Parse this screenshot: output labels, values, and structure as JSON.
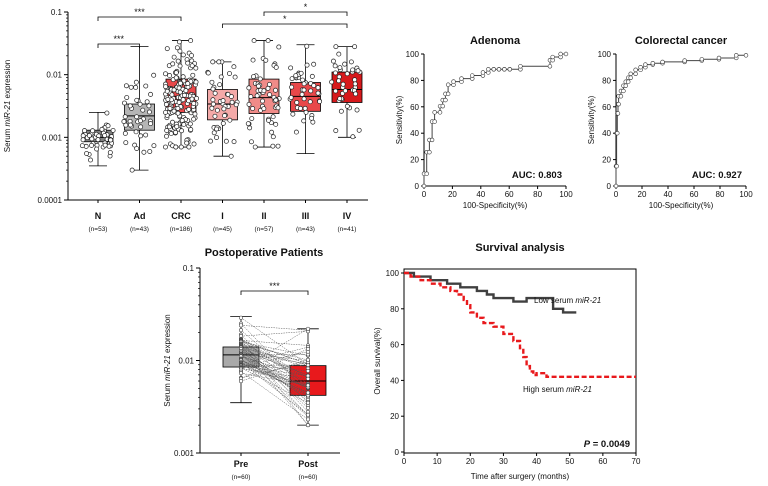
{
  "chart_data": [
    {
      "id": "boxA",
      "type": "box",
      "ylabel_prefix": "Serum ",
      "ylabel_italic": "miR-21",
      "ylabel_suffix": " expression",
      "yscale": "log",
      "ylim": [
        0.0001,
        0.1
      ],
      "yticks": [
        "0.1",
        "0.01",
        "0.001",
        "0.0001"
      ],
      "categories": [
        {
          "label": "N",
          "n_label": "(n=53)",
          "n": 53,
          "color": "#808080",
          "q1": 0.00085,
          "median": 0.001,
          "q3": 0.0013,
          "wlo": 0.00035,
          "whi": 0.0025
        },
        {
          "label": "Ad",
          "n_label": "(n=43)",
          "n": 43,
          "color": "#b5b5b5",
          "q1": 0.0013,
          "median": 0.0022,
          "q3": 0.0034,
          "wlo": 0.0003,
          "whi": 0.028
        },
        {
          "label": "CRC",
          "n_label": "(n=186)",
          "n": 186,
          "color": "#e8484a",
          "q1": 0.0025,
          "median": 0.0045,
          "q3": 0.0085,
          "wlo": 0.0007,
          "whi": 0.035
        },
        {
          "label": "I",
          "n_label": "(n=45)",
          "n": 45,
          "color": "#f4a9a8",
          "q1": 0.0019,
          "median": 0.0034,
          "q3": 0.0058,
          "wlo": 0.0005,
          "whi": 0.016
        },
        {
          "label": "II",
          "n_label": "(n=57)",
          "n": 57,
          "color": "#f08b88",
          "q1": 0.0024,
          "median": 0.0043,
          "q3": 0.0085,
          "wlo": 0.0007,
          "whi": 0.035
        },
        {
          "label": "III",
          "n_label": "(n=43)",
          "n": 43,
          "color": "#e8484a",
          "q1": 0.0026,
          "median": 0.0045,
          "q3": 0.0075,
          "wlo": 0.00055,
          "whi": 0.03
        },
        {
          "label": "IV",
          "n_label": "(n=41)",
          "n": 41,
          "color": "#d7191c",
          "q1": 0.0036,
          "median": 0.0058,
          "q3": 0.011,
          "wlo": 0.001,
          "whi": 0.028
        }
      ],
      "significance": [
        {
          "from": 0,
          "to": 1,
          "label": "***"
        },
        {
          "from": 0,
          "to": 2,
          "label": "***"
        },
        {
          "from": 3,
          "to": 6,
          "label": "*"
        },
        {
          "from": 4,
          "to": 6,
          "label": "*"
        }
      ]
    },
    {
      "id": "rocAdenoma",
      "type": "line",
      "title": "Adenoma",
      "xlabel": "100-Specificity(%)",
      "ylabel": "Sensitivity(%)",
      "xlim": [
        0,
        100
      ],
      "ylim": [
        0,
        100
      ],
      "ticks": [
        "0",
        "20",
        "40",
        "60",
        "80",
        "100"
      ],
      "annotation": "AUC: 0.803",
      "x": [
        0,
        0,
        1.9,
        1.9,
        3.8,
        3.8,
        5.7,
        5.7,
        7.5,
        7.5,
        11.3,
        11.3,
        13.2,
        13.2,
        15.1,
        15.1,
        17.0,
        17.0,
        20.8,
        20.8,
        26.4,
        26.4,
        34.0,
        34.0,
        41.5,
        41.5,
        45.3,
        45.3,
        49.1,
        49.1,
        52.8,
        52.8,
        56.6,
        56.6,
        60.4,
        60.4,
        67.9,
        67.9,
        88.7,
        88.7,
        90.6,
        90.6,
        96.2,
        96.2,
        100
      ],
      "y": [
        0,
        9.3,
        9.3,
        25.6,
        25.6,
        34.9,
        34.9,
        48.8,
        48.8,
        55.8,
        55.8,
        60.5,
        60.5,
        65.1,
        65.1,
        69.8,
        69.8,
        76.7,
        76.7,
        79.1,
        79.1,
        81.4,
        81.4,
        83.7,
        83.7,
        86.0,
        86.0,
        88.4,
        88.4,
        88.4,
        88.4,
        88.4,
        88.4,
        88.4,
        88.4,
        88.4,
        88.4,
        90.7,
        90.7,
        95.3,
        95.3,
        97.7,
        97.7,
        100,
        100
      ]
    },
    {
      "id": "rocCRC",
      "type": "line",
      "title": "Colorectal cancer",
      "xlabel": "100-Specificity(%)",
      "ylabel": "Sensitivity(%)",
      "xlim": [
        0,
        100
      ],
      "ylim": [
        0,
        100
      ],
      "ticks": [
        "0",
        "20",
        "40",
        "60",
        "80",
        "100"
      ],
      "annotation": "AUC: 0.927",
      "x": [
        0,
        0,
        0.5,
        0.5,
        1.0,
        1.0,
        1.5,
        1.5,
        2.0,
        2.0,
        3.8,
        3.8,
        5.7,
        5.7,
        7.5,
        7.5,
        9.4,
        9.4,
        11.3,
        11.3,
        15.1,
        15.1,
        18.9,
        18.9,
        22.6,
        22.6,
        28.3,
        28.3,
        35.8,
        35.8,
        52.8,
        52.8,
        66.0,
        66.0,
        79.2,
        79.2,
        92.5,
        92.5,
        100
      ],
      "y": [
        0,
        15,
        15,
        40,
        40,
        55,
        55,
        62,
        62,
        68,
        68,
        72,
        72,
        76,
        76,
        79,
        79,
        82,
        82,
        85,
        85,
        88,
        88,
        90,
        90,
        92,
        92,
        93,
        93,
        94,
        94,
        95,
        95,
        96,
        96,
        97,
        97,
        99,
        99
      ]
    },
    {
      "id": "paired",
      "type": "box",
      "title": "Postoperative Patients",
      "ylabel_prefix": "Serum ",
      "ylabel_italic": "miR-21",
      "ylabel_suffix": " expression",
      "yscale": "log",
      "ylim": [
        0.001,
        0.1
      ],
      "yticks": [
        "0.1",
        "0.01",
        "0.001"
      ],
      "categories": [
        {
          "label": "Pre",
          "n_label": "(n=60)",
          "n": 60,
          "color": "#a9a9a9",
          "q1": 0.0085,
          "median": 0.0115,
          "q3": 0.014,
          "wlo": 0.0035,
          "whi": 0.03
        },
        {
          "label": "Post",
          "n_label": "(n=60)",
          "n": 60,
          "color": "#e8191c",
          "q1": 0.0042,
          "median": 0.006,
          "q3": 0.0088,
          "wlo": 0.002,
          "whi": 0.022
        }
      ],
      "significance": [
        {
          "from": 0,
          "to": 1,
          "label": "***"
        }
      ]
    },
    {
      "id": "survival",
      "type": "line",
      "title": "Survival analysis",
      "xlabel": "Time after surgery (months)",
      "ylabel": "Overall survival(%)",
      "xlim": [
        0,
        70
      ],
      "ylim": [
        0,
        100
      ],
      "xticks": [
        "0",
        "10",
        "20",
        "30",
        "40",
        "50",
        "60",
        "70"
      ],
      "yticks": [
        "0",
        "20",
        "40",
        "60",
        "80",
        "100"
      ],
      "annotation_prefix": "P",
      "annotation_value": " = 0.0049",
      "series": [
        {
          "label_prefix": "Low serum ",
          "label_italic": "miR-21",
          "color": "#404040",
          "dash": false,
          "x": [
            0,
            3,
            3,
            8,
            8,
            13,
            13,
            17,
            17,
            22,
            22,
            25,
            25,
            27,
            27,
            33,
            33,
            37,
            37,
            45,
            45,
            48,
            48,
            52
          ],
          "y": [
            100,
            100,
            98,
            98,
            96,
            96,
            94,
            94,
            92,
            92,
            90,
            90,
            88,
            88,
            86,
            86,
            84,
            84,
            86,
            86,
            80,
            80,
            78,
            78
          ]
        },
        {
          "label_prefix": "High serum ",
          "label_italic": "miR-21",
          "color": "#e8191c",
          "dash": true,
          "x": [
            0,
            2,
            2,
            5,
            5,
            8,
            8,
            11,
            11,
            14,
            14,
            16,
            16,
            18,
            18,
            19,
            19,
            20,
            20,
            22,
            22,
            24,
            24,
            27,
            27,
            30,
            30,
            33,
            33,
            35,
            35,
            36,
            36,
            37,
            37,
            38,
            38,
            39,
            39,
            40,
            40,
            43,
            43,
            70
          ],
          "y": [
            100,
            100,
            98,
            98,
            96,
            96,
            94,
            94,
            92,
            92,
            90,
            90,
            88,
            88,
            85,
            85,
            82,
            82,
            78,
            78,
            75,
            75,
            72,
            72,
            70,
            70,
            66,
            66,
            62,
            62,
            58,
            58,
            53,
            53,
            48,
            48,
            45,
            45,
            43,
            43,
            44,
            44,
            42,
            42
          ]
        }
      ]
    }
  ]
}
